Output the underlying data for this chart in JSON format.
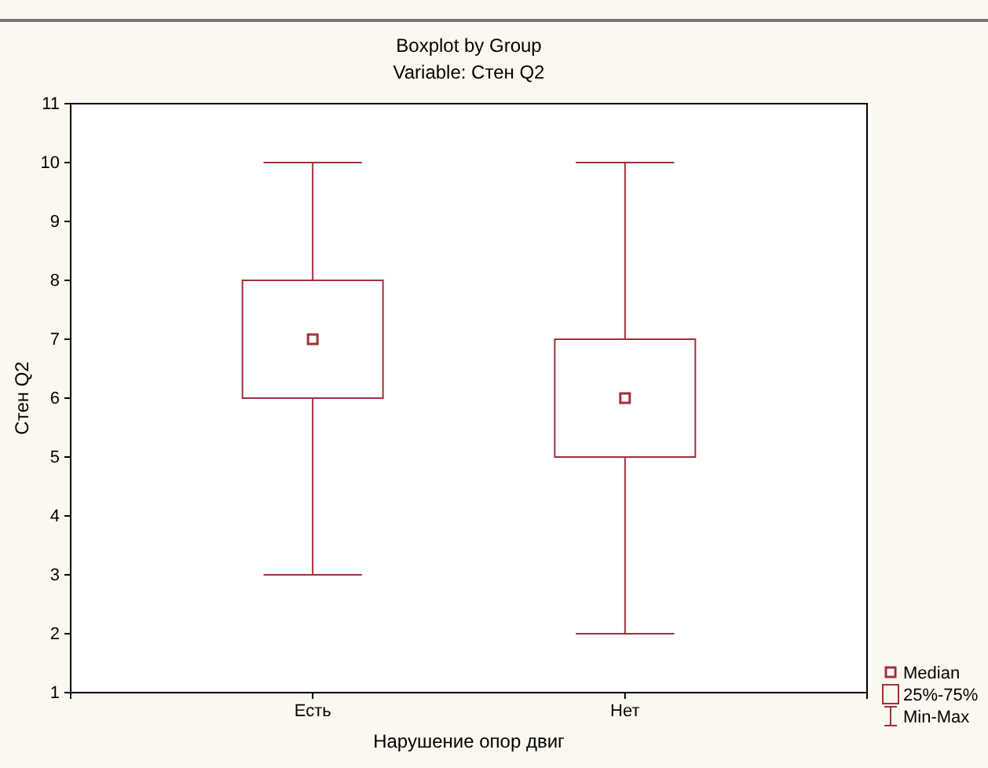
{
  "chart_data": {
    "type": "box",
    "title": "Boxplot by Group",
    "subtitle": "Variable: Стен Q2",
    "xlabel": "Нарушение опор двиг",
    "ylabel": "Стен Q2",
    "categories": [
      "Есть",
      "Нет"
    ],
    "boxes": [
      {
        "low": 3,
        "q1": 6,
        "median": 7,
        "q3": 8,
        "high": 10
      },
      {
        "low": 2,
        "q1": 5,
        "median": 6,
        "q3": 7,
        "high": 10
      }
    ],
    "color": "#a0303a",
    "ylim": [
      1,
      11
    ],
    "yticks": [
      1,
      2,
      3,
      4,
      5,
      6,
      7,
      8,
      9,
      10,
      11
    ],
    "grid": false,
    "annotations": [
      "Median",
      "25%-75%",
      "Min-Max"
    ]
  }
}
